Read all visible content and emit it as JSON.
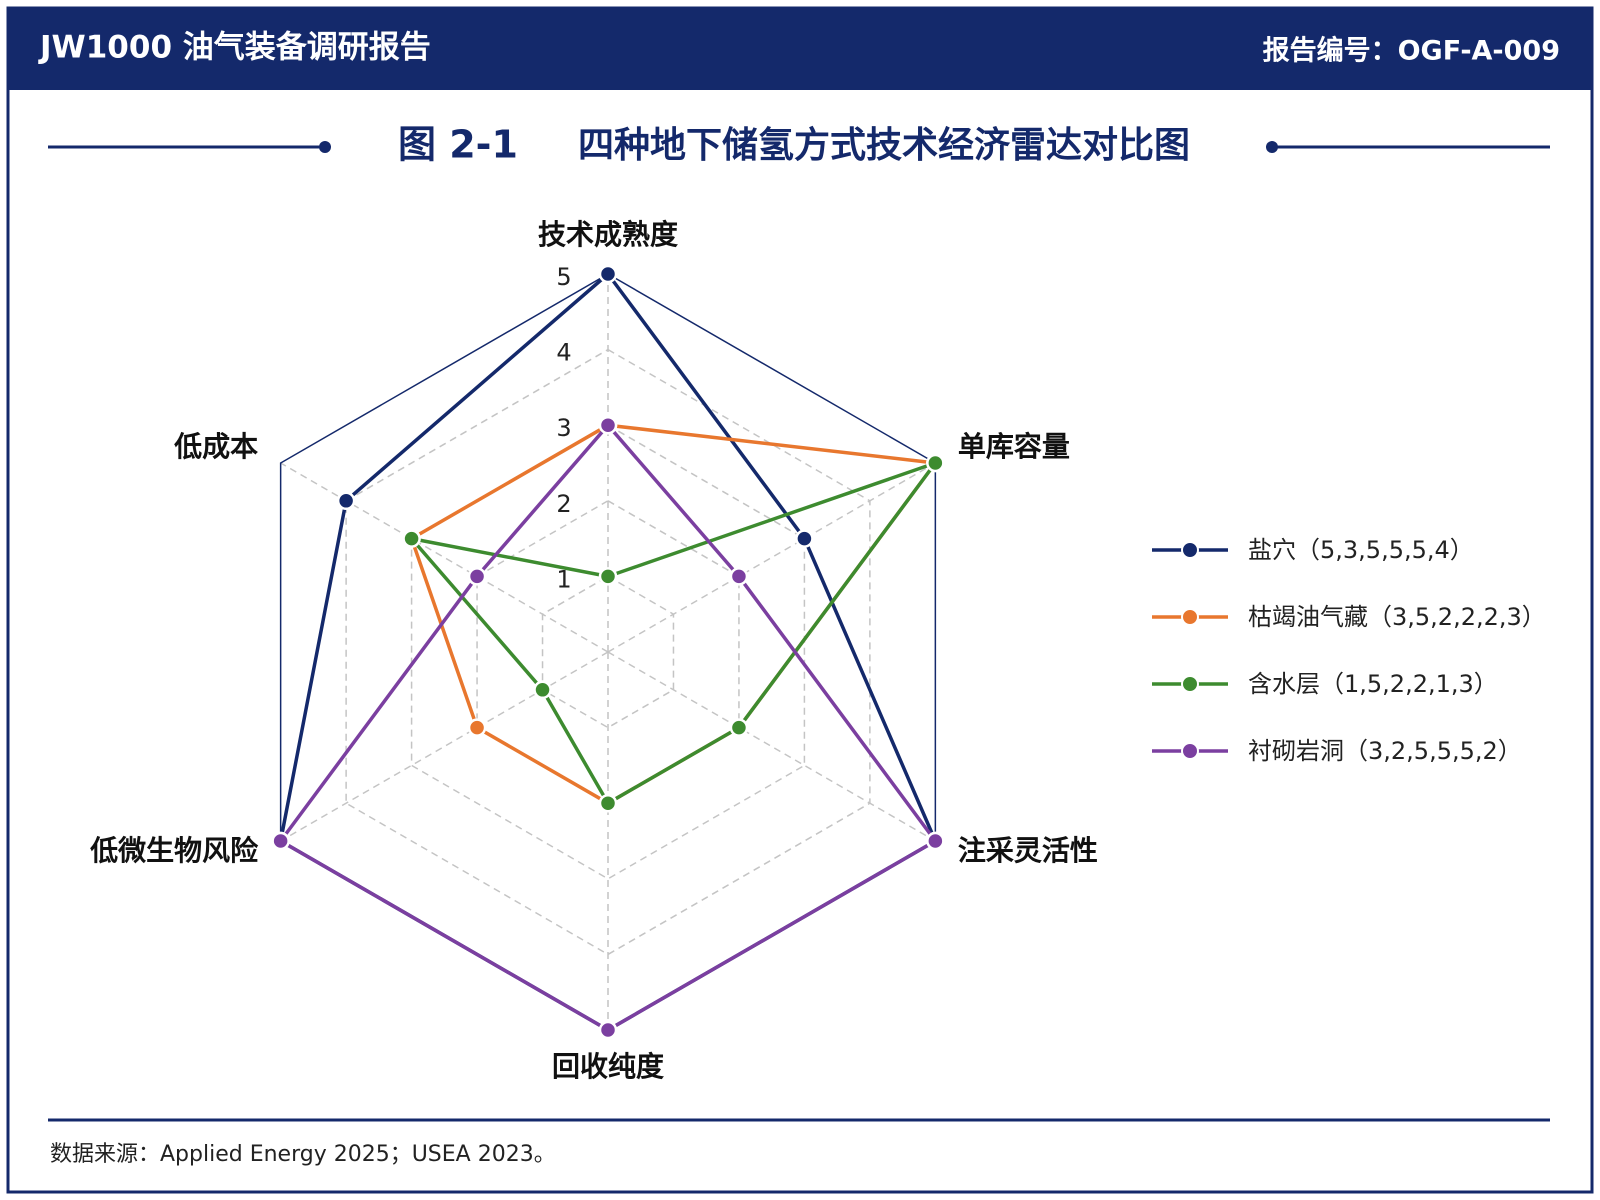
{
  "header": {
    "title": "JW1000 油气装备调研报告",
    "report_no": "报告编号：OGF-A-009"
  },
  "chart_data": {
    "type": "radar",
    "figure_label": "图 2-1",
    "title": "四种地下储氢方式技术经济雷达对比图",
    "categories": [
      "技术成熟度",
      "单库容量",
      "注采灵活性",
      "回收纯度",
      "低微生物风险",
      "低成本"
    ],
    "series": [
      {
        "name": "盐穴（5,3,5,5,5,4）",
        "color": "#14296b",
        "values": [
          5,
          3,
          5,
          5,
          5,
          4
        ]
      },
      {
        "name": "枯竭油气藏（3,5,2,2,2,3）",
        "color": "#e8772e",
        "values": [
          3,
          5,
          2,
          2,
          2,
          3
        ]
      },
      {
        "name": "含水层（1,5,2,2,1,3）",
        "color": "#3d8b2f",
        "values": [
          1,
          5,
          2,
          2,
          1,
          3
        ]
      },
      {
        "name": "衬砌岩洞（3,2,5,5,5,2）",
        "color": "#7b3fa0",
        "values": [
          3,
          2,
          5,
          5,
          5,
          2
        ]
      }
    ],
    "ylim": [
      0,
      5
    ],
    "yticks": [
      1,
      2,
      3,
      4,
      5
    ],
    "grid": true,
    "legend_position": "right"
  },
  "footer": {
    "source": "数据来源：Applied Energy 2025；USEA 2023。"
  }
}
